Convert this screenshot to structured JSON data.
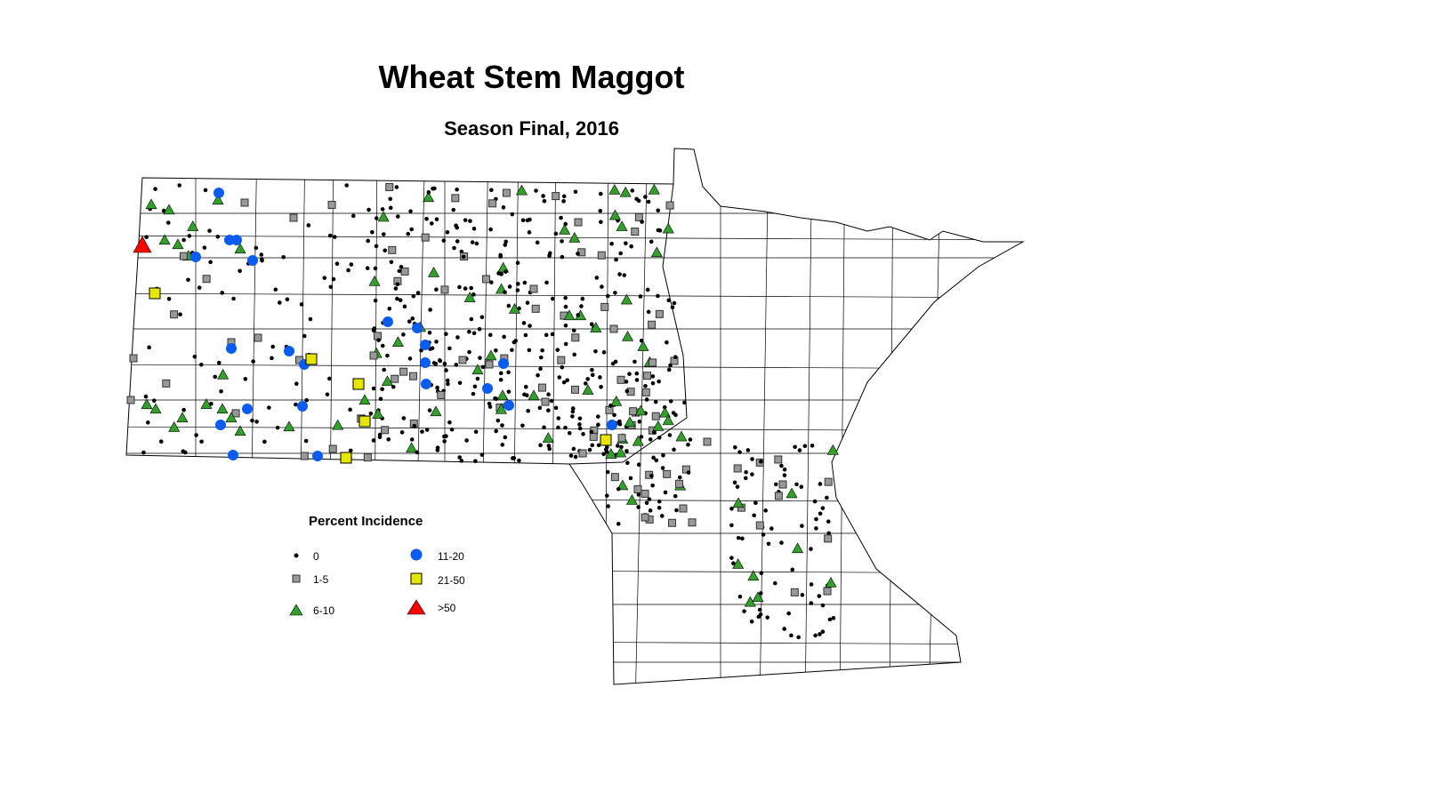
{
  "title": "Wheat Stem Maggot",
  "subtitle": "Season Final, 2016",
  "legend": {
    "title": "Percent Incidence",
    "items": [
      {
        "label": "0",
        "symbol": "small-dot",
        "color": "#000000"
      },
      {
        "label": "1-5",
        "symbol": "square",
        "color": "#999999"
      },
      {
        "label": "6-10",
        "symbol": "triangle",
        "color": "#33A02C"
      },
      {
        "label": "11-20",
        "symbol": "circle",
        "color": "#0A5CF0"
      },
      {
        "label": "21-50",
        "symbol": "square",
        "color": "#E6E600"
      },
      {
        "label": ">50",
        "symbol": "triangle",
        "color": "#FF0000"
      }
    ]
  }
}
